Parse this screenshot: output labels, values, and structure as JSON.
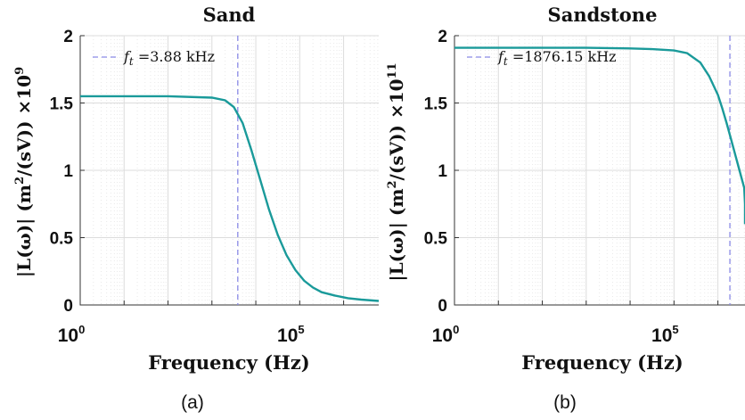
{
  "chart_data": [
    {
      "type": "line",
      "panel": "(a)",
      "title": "Sand",
      "xlabel": "Frequency (Hz)",
      "ylabel": "|L(ω)| (m²/(sV)) ×10⁹",
      "ylabel_parts": {
        "main": "|L(ω)| (m",
        "sup1": "2",
        "mid": "/(sV)) ×10",
        "sup2": "9"
      },
      "xscale": "log",
      "xlim_exp": [
        0,
        6.8
      ],
      "ylim": [
        0,
        2
      ],
      "x_ticks": [
        {
          "base": "10",
          "exp": "0",
          "value_exp": 0
        },
        {
          "base": "10",
          "exp": "5",
          "value_exp": 5
        }
      ],
      "y_ticks": [
        {
          "label": "0",
          "value": 0
        },
        {
          "label": "0.5",
          "value": 0.5
        },
        {
          "label": "1",
          "value": 1
        },
        {
          "label": "1.5",
          "value": 1.5
        },
        {
          "label": "2",
          "value": 2
        }
      ],
      "grid": true,
      "legend_position": "top-left",
      "legend_label": "f_t = 3.88 kHz",
      "legend_parts": {
        "f": "f",
        "sub": "t",
        "rest": " =3.88 kHz"
      },
      "vline": {
        "x_hz": 3880
      },
      "series": [
        {
          "x_exp": [
            0,
            1,
            2,
            3,
            3.3,
            3.5,
            3.7,
            3.9,
            4.1,
            4.3,
            4.5,
            4.7,
            4.9,
            5.1,
            5.3,
            5.5,
            5.8,
            6.1,
            6.4,
            6.8
          ],
          "y": [
            1.55,
            1.55,
            1.55,
            1.54,
            1.52,
            1.47,
            1.35,
            1.15,
            0.93,
            0.71,
            0.52,
            0.37,
            0.26,
            0.18,
            0.13,
            0.095,
            0.07,
            0.05,
            0.04,
            0.03
          ]
        }
      ],
      "colors": {
        "curve": "#1a9a9a",
        "vline": "#8a8ae6"
      }
    },
    {
      "type": "line",
      "panel": "(b)",
      "title": "Sandstone",
      "xlabel": "Frequency (Hz)",
      "ylabel": "|L(ω)| (m²/(sV)) ×10¹¹",
      "ylabel_parts": {
        "main": "|L(ω)| (m",
        "sup1": "2",
        "mid": "/(sV)) ×10",
        "sup2": "11"
      },
      "xscale": "log",
      "xlim_exp": [
        0,
        6.8
      ],
      "ylim": [
        0,
        2
      ],
      "x_ticks": [
        {
          "base": "10",
          "exp": "0",
          "value_exp": 0
        },
        {
          "base": "10",
          "exp": "5",
          "value_exp": 5
        }
      ],
      "y_ticks": [
        {
          "label": "0",
          "value": 0
        },
        {
          "label": "0.5",
          "value": 0.5
        },
        {
          "label": "1",
          "value": 1
        },
        {
          "label": "1.5",
          "value": 1.5
        },
        {
          "label": "2",
          "value": 2
        }
      ],
      "grid": true,
      "legend_position": "top-left",
      "legend_label": "f_t = 1876.15 kHz",
      "legend_parts": {
        "f": "f",
        "sub": "t",
        "rest": " =1876.15 kHz"
      },
      "vline": {
        "x_hz": 1876150
      },
      "series": [
        {
          "x_exp": [
            0,
            1,
            2,
            3,
            4,
            4.5,
            5.0,
            5.3,
            5.6,
            5.8,
            6.0,
            6.1,
            6.2,
            6.3,
            6.4,
            6.5,
            6.6,
            6.7,
            6.8
          ],
          "y": [
            1.91,
            1.91,
            1.91,
            1.91,
            1.905,
            1.9,
            1.89,
            1.87,
            1.8,
            1.7,
            1.56,
            1.46,
            1.35,
            1.23,
            1.11,
            0.99,
            0.87,
            0.75,
            0.6
          ]
        }
      ],
      "colors": {
        "curve": "#1a9a9a",
        "vline": "#8a8ae6"
      }
    }
  ]
}
